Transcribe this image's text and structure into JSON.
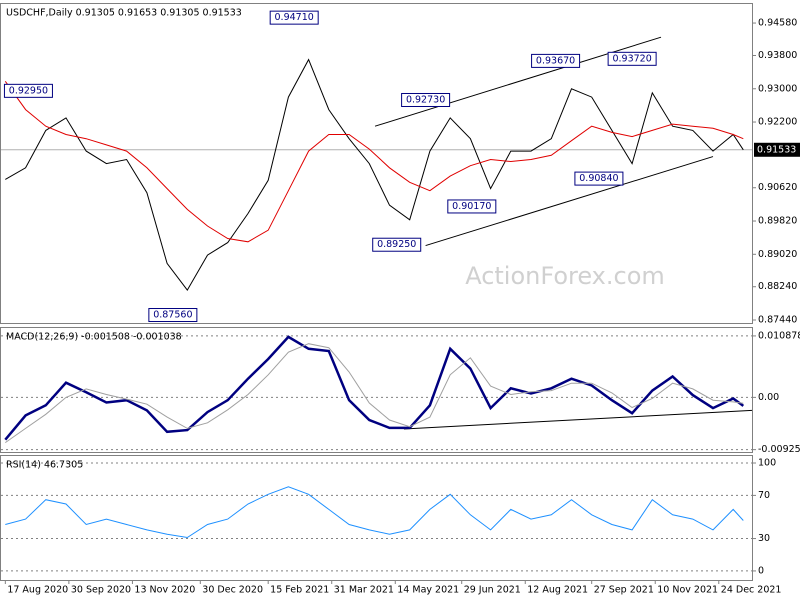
{
  "chart_data": [
    {
      "type": "line",
      "title": "USDCHF,Daily  0.91305 0.91653 0.91305 0.91533",
      "x": [
        "2020-08-17",
        "2020-08-31",
        "2020-09-14",
        "2020-09-28",
        "2020-10-12",
        "2020-10-26",
        "2020-11-09",
        "2020-11-23",
        "2020-12-07",
        "2020-12-21",
        "2021-01-04",
        "2021-01-18",
        "2021-02-01",
        "2021-02-15",
        "2021-03-01",
        "2021-03-15",
        "2021-03-29",
        "2021-04-12",
        "2021-04-26",
        "2021-05-10",
        "2021-05-24",
        "2021-06-07",
        "2021-06-21",
        "2021-07-05",
        "2021-07-19",
        "2021-08-02",
        "2021-08-16",
        "2021-08-30",
        "2021-09-13",
        "2021-09-27",
        "2021-10-11",
        "2021-10-25",
        "2021-11-08",
        "2021-11-22",
        "2021-12-06",
        "2021-12-20",
        "2022-01-03",
        "2022-01-10"
      ],
      "series": [
        {
          "color": "#000000",
          "values": [
            0.9082,
            0.911,
            0.92,
            0.923,
            0.915,
            0.912,
            0.913,
            0.905,
            0.888,
            0.8816,
            0.89,
            0.893,
            0.9,
            0.908,
            0.928,
            0.937,
            0.925,
            0.918,
            0.912,
            0.902,
            0.8985,
            0.915,
            0.923,
            0.918,
            0.906,
            0.915,
            0.915,
            0.918,
            0.93,
            0.928,
            0.92,
            0.912,
            0.929,
            0.921,
            0.92,
            0.915,
            0.919,
            0.91533
          ]
        },
        {
          "color": "#e00000",
          "values": [
            0.9318,
            0.925,
            0.921,
            0.919,
            0.918,
            0.9165,
            0.915,
            0.911,
            0.906,
            0.901,
            0.897,
            0.894,
            0.8932,
            0.896,
            0.9055,
            0.915,
            0.919,
            0.919,
            0.9155,
            0.911,
            0.9075,
            0.9055,
            0.909,
            0.9115,
            0.913,
            0.9125,
            0.913,
            0.914,
            0.9175,
            0.921,
            0.9195,
            0.9185,
            0.92,
            0.9215,
            0.921,
            0.9205,
            0.919,
            0.918
          ]
        }
      ],
      "xlim": [
        "2020-08-14",
        "2022-01-16"
      ],
      "ylim": [
        0.87368,
        0.95038
      ],
      "yticks": [
        {
          "value": 0.9458,
          "label": "0.94580"
        },
        {
          "value": 0.938,
          "label": "0.93800"
        },
        {
          "value": 0.93,
          "label": "0.93000"
        },
        {
          "value": 0.922,
          "label": "0.92200"
        },
        {
          "value": 0.9062,
          "label": "0.90620"
        },
        {
          "value": 0.8982,
          "label": "0.89820"
        },
        {
          "value": 0.8902,
          "label": "0.89020"
        },
        {
          "value": 0.8824,
          "label": "0.88240"
        },
        {
          "value": 0.8744,
          "label": "0.87440"
        }
      ],
      "grid": false,
      "last_price": 0.91533,
      "watermark": "ActionForex.com",
      "trendlines": [
        {
          "x": [
            "2021-04-30",
            "2021-11-14"
          ],
          "y": [
            0.921,
            0.9424
          ]
        },
        {
          "x": [
            "2021-06-04",
            "2021-12-20"
          ],
          "y": [
            0.8923,
            0.9137
          ]
        }
      ],
      "annotations": [
        {
          "label": "0.92950",
          "value": 0.9295,
          "x": "2020-09-02"
        },
        {
          "label": "0.94710",
          "value": 0.9471,
          "x": "2021-03-05"
        },
        {
          "label": "0.87560",
          "value": 0.8756,
          "x": "2020-12-11"
        },
        {
          "label": "0.92730",
          "value": 0.9273,
          "x": "2021-06-04"
        },
        {
          "label": "0.89250",
          "value": 0.8925,
          "x": "2021-05-15"
        },
        {
          "label": "0.90170",
          "value": 0.9017,
          "x": "2021-07-06"
        },
        {
          "label": "0.93670",
          "value": 0.9367,
          "x": "2021-09-02"
        },
        {
          "label": "0.93720",
          "value": 0.9372,
          "x": "2021-10-25"
        },
        {
          "label": "0.90840",
          "value": 0.9084,
          "x": "2021-10-02"
        }
      ]
    },
    {
      "type": "line",
      "title": "MACD(12,26,9) -0.001508 -0.001038",
      "x": [
        "2020-08-17",
        "2020-08-31",
        "2020-09-14",
        "2020-09-28",
        "2020-10-12",
        "2020-10-26",
        "2020-11-09",
        "2020-11-23",
        "2020-12-07",
        "2020-12-21",
        "2021-01-04",
        "2021-01-18",
        "2021-02-01",
        "2021-02-15",
        "2021-03-01",
        "2021-03-15",
        "2021-03-29",
        "2021-04-12",
        "2021-04-26",
        "2021-05-10",
        "2021-05-24",
        "2021-06-07",
        "2021-06-21",
        "2021-07-05",
        "2021-07-19",
        "2021-08-02",
        "2021-08-16",
        "2021-08-30",
        "2021-09-13",
        "2021-09-27",
        "2021-10-11",
        "2021-10-25",
        "2021-11-08",
        "2021-11-22",
        "2021-12-06",
        "2021-12-20",
        "2022-01-03",
        "2022-01-10"
      ],
      "series": [
        {
          "color": "#000080",
          "values": [
            -0.0075,
            -0.0032,
            -0.0014,
            0.0026,
            0.0009,
            -0.0009,
            -0.0005,
            -0.0023,
            -0.0061,
            -0.0058,
            -0.0026,
            -0.0005,
            0.0033,
            0.0068,
            0.0107,
            0.0086,
            0.0082,
            -0.0005,
            -0.004,
            -0.0054,
            -0.0054,
            -0.0014,
            0.0086,
            0.0051,
            -0.0019,
            0.0016,
            0.0007,
            0.0016,
            0.0033,
            0.0021,
            -0.0005,
            -0.0028,
            0.0012,
            0.0037,
            0.0004,
            -0.0019,
            -0.0002,
            -0.001508
          ]
        },
        {
          "color": "#a0a0a0",
          "values": [
            -0.008,
            -0.0055,
            -0.003,
            0,
            0.0015,
            0.0005,
            -0.0003,
            -0.0012,
            -0.0035,
            -0.0055,
            -0.0045,
            -0.0022,
            0.0005,
            0.004,
            0.008,
            0.0095,
            0.0088,
            0.0045,
            -0.001,
            -0.004,
            -0.0052,
            -0.0035,
            0.004,
            0.007,
            0.002,
            0.0005,
            0.001,
            0.0012,
            0.0025,
            0.0025,
            0.0008,
            -0.0018,
            -0.0002,
            0.0025,
            0.0015,
            -0.0005,
            -0.0008,
            -0.001038
          ]
        }
      ],
      "xlim": [
        "2020-08-14",
        "2022-01-16"
      ],
      "ylim": [
        -0.00967,
        0.01228
      ],
      "yticks": [
        0.010878,
        {
          "value": 0,
          "label": "0.00"
        },
        -0.00925
      ],
      "grid": true,
      "trendlines": [
        {
          "x": [
            "2021-05-20",
            "2022-01-16"
          ],
          "y": [
            -0.0056,
            -0.0023
          ]
        }
      ]
    },
    {
      "type": "line",
      "title": "RSI(14) 46.7305",
      "x": [
        "2020-08-17",
        "2020-08-31",
        "2020-09-14",
        "2020-09-28",
        "2020-10-12",
        "2020-10-26",
        "2020-11-09",
        "2020-11-23",
        "2020-12-07",
        "2020-12-21",
        "2021-01-04",
        "2021-01-18",
        "2021-02-01",
        "2021-02-15",
        "2021-03-01",
        "2021-03-15",
        "2021-03-29",
        "2021-04-12",
        "2021-04-26",
        "2021-05-10",
        "2021-05-24",
        "2021-06-07",
        "2021-06-21",
        "2021-07-05",
        "2021-07-19",
        "2021-08-02",
        "2021-08-16",
        "2021-08-30",
        "2021-09-13",
        "2021-09-27",
        "2021-10-11",
        "2021-10-25",
        "2021-11-08",
        "2021-11-22",
        "2021-12-06",
        "2021-12-20",
        "2022-01-03",
        "2022-01-10"
      ],
      "series": [
        {
          "color": "#1e90ff",
          "values": [
            43,
            48,
            66,
            62,
            43,
            48,
            43,
            38,
            34,
            31,
            43,
            48,
            62,
            71,
            78,
            71,
            57,
            43,
            38,
            34,
            38,
            57,
            71,
            52,
            38,
            57,
            48,
            52,
            66,
            52,
            43,
            38,
            66,
            52,
            48,
            38,
            57,
            46.7305
          ]
        }
      ],
      "xlim": [
        "2020-08-14",
        "2022-01-16"
      ],
      "ylim": [
        -8.4,
        106.5
      ],
      "yticks": [
        100,
        70,
        30,
        0
      ],
      "grid": true,
      "xticks": [
        {
          "value": "2020-08-17",
          "label": "17 Aug 2020"
        },
        {
          "value": "2020-09-30",
          "label": "30 Sep 2020"
        },
        {
          "value": "2020-11-13",
          "label": "13 Nov 2020"
        },
        {
          "value": "2020-12-30",
          "label": "30 Dec 2020"
        },
        {
          "value": "2021-02-15",
          "label": "15 Feb 2021"
        },
        {
          "value": "2021-03-31",
          "label": "31 Mar 2021"
        },
        {
          "value": "2021-05-14",
          "label": "14 May 2021"
        },
        {
          "value": "2021-06-29",
          "label": "29 Jun 2021"
        },
        {
          "value": "2021-08-12",
          "label": "12 Aug 2021"
        },
        {
          "value": "2021-09-27",
          "label": "27 Sep 2021"
        },
        {
          "value": "2021-11-10",
          "label": "10 Nov 2021"
        },
        {
          "value": "2021-12-24",
          "label": "24 Dec 2021"
        }
      ]
    }
  ]
}
